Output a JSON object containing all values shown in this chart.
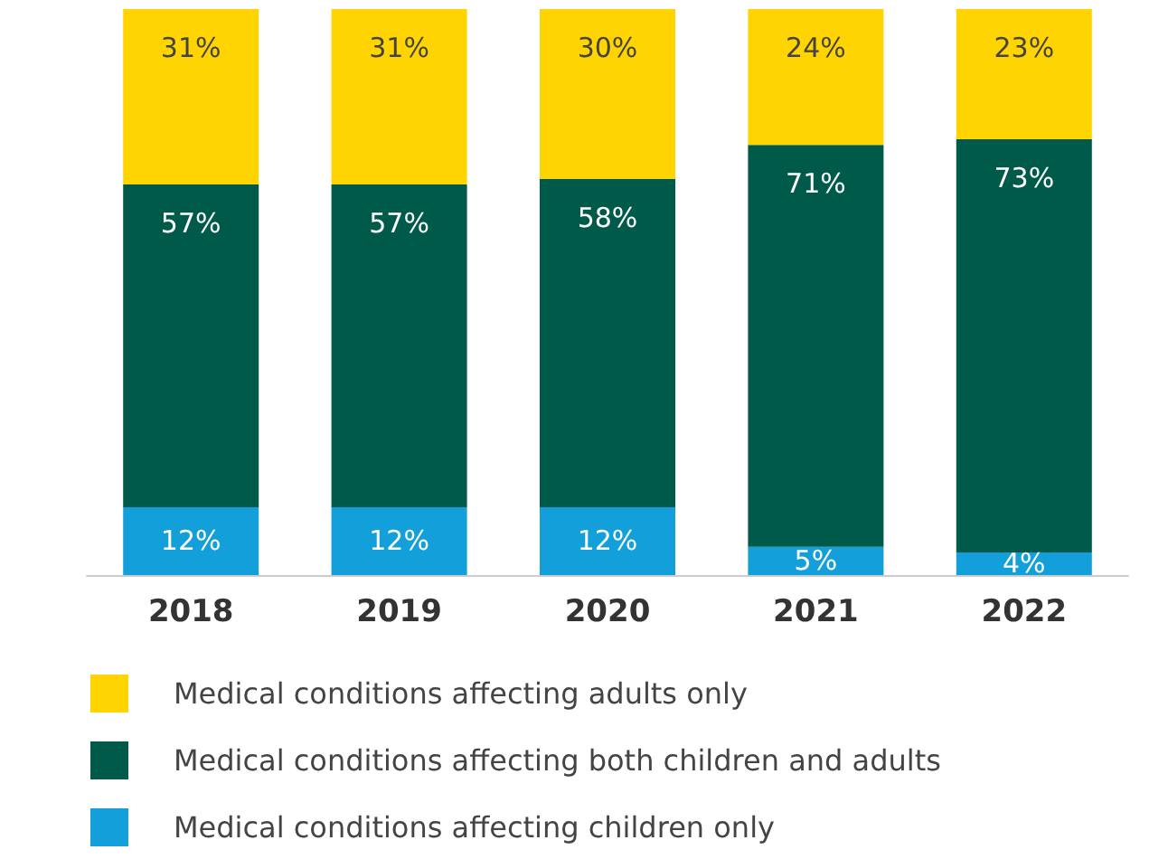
{
  "chart_data": {
    "type": "bar",
    "stacked": true,
    "legend": "bottom",
    "categories": [
      "2018",
      "2019",
      "2020",
      "2021",
      "2022"
    ],
    "series": [
      {
        "name": "Medical conditions affecting children only",
        "color": "#139fd9",
        "values": [
          12,
          12,
          12,
          5,
          4
        ],
        "value_labels": [
          "12%",
          "12%",
          "12%",
          "5%",
          "4%"
        ]
      },
      {
        "name": "Medical conditions affecting both children and adults",
        "color": "#005a4a",
        "values": [
          57,
          57,
          58,
          71,
          73
        ],
        "value_labels": [
          "57%",
          "57%",
          "58%",
          "71%",
          "73%"
        ]
      },
      {
        "name": "Medical conditions affecting adults only",
        "color": "#ffd400",
        "values": [
          31,
          31,
          30,
          24,
          23
        ],
        "value_labels": [
          "31%",
          "31%",
          "30%",
          "24%",
          "23%"
        ]
      }
    ]
  }
}
